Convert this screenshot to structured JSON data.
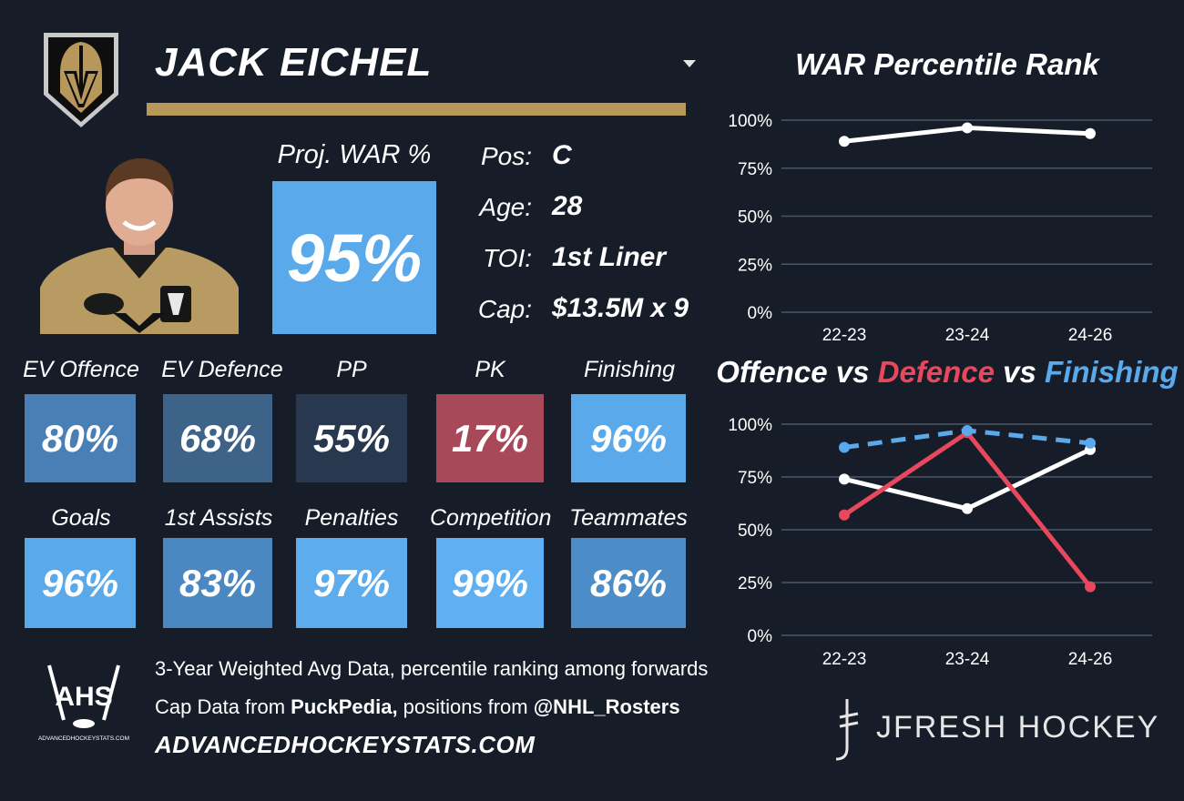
{
  "player": {
    "name": "JACK EICHEL",
    "proj_war_label": "Proj. WAR %",
    "proj_war_value": "95%",
    "info": [
      {
        "label": "Pos:",
        "value": "C"
      },
      {
        "label": "Age:",
        "value": "28"
      },
      {
        "label": "TOI:",
        "value": "1st Liner"
      },
      {
        "label": "Cap:",
        "value": "$13.5M x 9"
      }
    ]
  },
  "stats_row1": [
    {
      "label": "EV Offence",
      "value": "80%",
      "color": "#4a7fb5"
    },
    {
      "label": "EV Defence",
      "value": "68%",
      "color": "#3d6388"
    },
    {
      "label": "PP",
      "value": "55%",
      "color": "#28384f"
    },
    {
      "label": "PK",
      "value": "17%",
      "color": "#a8495a"
    },
    {
      "label": "Finishing",
      "value": "96%",
      "color": "#5aaaeb"
    }
  ],
  "stats_row2": [
    {
      "label": "Goals",
      "value": "96%",
      "color": "#5aaaeb"
    },
    {
      "label": "1st Assists",
      "value": "83%",
      "color": "#4b87c1"
    },
    {
      "label": "Penalties",
      "value": "97%",
      "color": "#5cacee"
    },
    {
      "label": "Competition",
      "value": "99%",
      "color": "#5eb0f2"
    },
    {
      "label": "Teammates",
      "value": "86%",
      "color": "#4c8dc8"
    }
  ],
  "colors": {
    "background": "#161d29",
    "gold": "#b7975a",
    "war_box": "#5aaaeb",
    "offence_line": "#ffffff",
    "defence_line": "#e8485e",
    "finishing_line": "#5aaaeb",
    "gridline": "#4a5668"
  },
  "footer": {
    "line1": "3-Year Weighted Avg Data, percentile ranking among forwards",
    "line2_prefix": "Cap Data from ",
    "line2_source1": "PuckPedia,",
    "line2_mid": " positions from ",
    "line2_source2": "@NHL_Rosters",
    "site": "ADVANCEDHOCKEYSTATS.COM",
    "ahs_logo_text": "AHS",
    "ahs_logo_subtext": "ADVANCEDHOCKEYSTATS.COM",
    "brand": "JFRESH HOCKEY"
  },
  "chart_titles": {
    "chart2_offence": "Offence",
    "chart2_vs1": " vs ",
    "chart2_defence": "Defence",
    "chart2_vs2": " vs ",
    "chart2_finishing": "Finishing"
  },
  "chart_data": [
    {
      "type": "line",
      "title": "WAR Percentile Rank",
      "categories": [
        "22-23",
        "23-24",
        "24-26"
      ],
      "series": [
        {
          "values": [
            89,
            96,
            93
          ]
        }
      ],
      "ylim": [
        0,
        100
      ],
      "yticks": [
        "0%",
        "25%",
        "50%",
        "75%",
        "100%"
      ],
      "grid": true
    },
    {
      "type": "line",
      "title": "Offence vs Defence vs Finishing",
      "categories": [
        "22-23",
        "23-24",
        "24-26"
      ],
      "series": [
        {
          "name": "Offence",
          "values": [
            74,
            60,
            88
          ],
          "color": "#ffffff",
          "style": "solid"
        },
        {
          "name": "Defence",
          "values": [
            57,
            96,
            23
          ],
          "color": "#e8485e",
          "style": "solid"
        },
        {
          "name": "Finishing",
          "values": [
            89,
            97,
            91
          ],
          "color": "#5aaaeb",
          "style": "dashed"
        }
      ],
      "ylim": [
        0,
        100
      ],
      "yticks": [
        "0%",
        "25%",
        "50%",
        "75%",
        "100%"
      ],
      "grid": true
    }
  ]
}
